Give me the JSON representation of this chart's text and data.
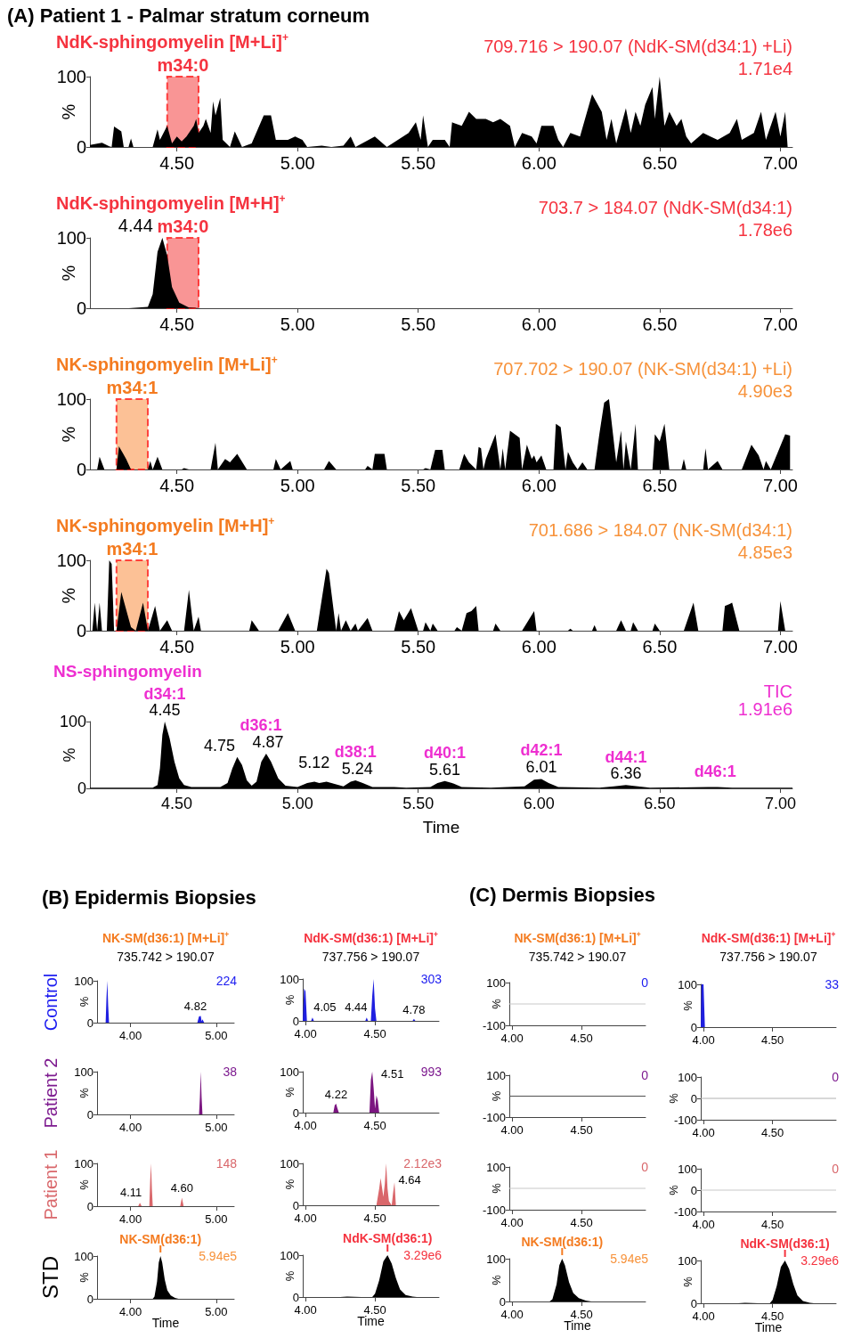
{
  "chart_data": [
    {
      "type": "area",
      "title": "NdK-sphingomyelin [M+Li]$^{+}$",
      "subtitle": "709.716 > 190.07 (NdK-SM(d34:1) +Li)",
      "ylabel": "%",
      "color": "#000000",
      "xlim": [
        4.14,
        7.05
      ],
      "xticks": [
        {
          "value": 4.5,
          "label": "4.50"
        },
        {
          "value": 5,
          "label": "5.00"
        },
        {
          "value": 5.5,
          "label": "5.50"
        },
        {
          "value": 6,
          "label": "6.00"
        },
        {
          "value": 6.5,
          "label": "6.50"
        },
        {
          "value": 7,
          "label": "7.00"
        }
      ],
      "ylim": [
        0,
        100
      ],
      "yticks": [
        0,
        100
      ],
      "x": [
        4.14,
        4.19,
        4.22,
        4.23,
        4.24,
        4.27,
        4.28,
        4.3,
        4.31,
        4.32,
        4.4,
        4.42,
        4.43,
        4.46,
        4.48,
        4.5,
        4.52,
        4.54,
        4.57,
        4.58,
        4.59,
        4.61,
        4.62,
        4.64,
        4.65,
        4.66,
        4.68,
        4.69,
        4.72,
        4.74,
        4.77,
        4.81,
        4.86,
        4.89,
        4.91,
        4.96,
        4.99,
        5.02,
        5.04,
        5.1,
        5.14,
        5.19,
        5.22,
        5.24,
        5.32,
        5.37,
        5.46,
        5.49,
        5.51,
        5.52,
        5.54,
        5.56,
        5.61,
        5.63,
        5.64,
        5.68,
        5.71,
        5.74,
        5.78,
        5.81,
        5.84,
        5.88,
        5.9,
        5.93,
        5.97,
        5.99,
        6.01,
        6.06,
        6.08,
        6.1,
        6.13,
        6.17,
        6.22,
        6.26,
        6.28,
        6.3,
        6.32,
        6.36,
        6.38,
        6.4,
        6.42,
        6.44,
        6.47,
        6.48,
        6.5,
        6.52,
        6.54,
        6.57,
        6.59,
        6.61,
        6.63,
        6.68,
        6.71,
        6.74,
        6.79,
        6.82,
        6.84,
        6.89,
        6.92,
        6.94,
        6.98,
        7.0,
        7.02,
        7.03
      ],
      "values": [
        3,
        6,
        1,
        0,
        29,
        22,
        0,
        0,
        12,
        0,
        0,
        25,
        10,
        30,
        5,
        15,
        8,
        15,
        30,
        40,
        20,
        30,
        40,
        20,
        65,
        45,
        70,
        10,
        0,
        22,
        0,
        5,
        45,
        45,
        10,
        10,
        15,
        10,
        0,
        2,
        0,
        2,
        15,
        0,
        15,
        0,
        20,
        35,
        10,
        45,
        0,
        10,
        10,
        0,
        35,
        30,
        50,
        40,
        40,
        35,
        40,
        30,
        0,
        20,
        15,
        5,
        30,
        30,
        10,
        0,
        20,
        15,
        75,
        50,
        10,
        40,
        5,
        55,
        20,
        50,
        30,
        60,
        85,
        40,
        100,
        30,
        50,
        30,
        40,
        15,
        5,
        20,
        15,
        10,
        20,
        40,
        10,
        20,
        50,
        10,
        50,
        15,
        50,
        0
      ],
      "bands": [
        {
          "axis": "x",
          "from": 4.46,
          "to": 4.59,
          "label": "m34:0",
          "color": "#f77a7a"
        }
      ],
      "annotations": [
        "(A) Patient 1 - Palmar stratum corneum",
        "1.71e4"
      ]
    },
    {
      "type": "area",
      "title": "NdK-sphingomyelin [M+H]$^{+}$",
      "subtitle": "703.7 > 184.07 (NdK-SM(d34:1)",
      "ylabel": "%",
      "color": "#000000",
      "xlim": [
        4.14,
        7.05
      ],
      "xticks": [
        {
          "value": 4.5,
          "label": "4.50"
        },
        {
          "value": 5,
          "label": "5.00"
        },
        {
          "value": 5.5,
          "label": "5.50"
        },
        {
          "value": 6,
          "label": "6.00"
        },
        {
          "value": 6.5,
          "label": "6.50"
        },
        {
          "value": 7,
          "label": "7.00"
        }
      ],
      "ylim": [
        0,
        100
      ],
      "yticks": [
        0,
        100
      ],
      "x": [
        4.14,
        4.3,
        4.38,
        4.4,
        4.42,
        4.44,
        4.46,
        4.48,
        4.51,
        4.55,
        4.6,
        7.05
      ],
      "values": [
        0,
        0,
        2,
        20,
        80,
        100,
        75,
        30,
        8,
        1,
        0,
        0
      ],
      "bands": [
        {
          "axis": "x",
          "from": 4.46,
          "to": 4.59,
          "label": "m34:0",
          "color": "#f77a7a"
        }
      ],
      "annotations": [
        "1.78e6",
        {
          "text": "4.44",
          "x": 4.44,
          "y": 100
        }
      ]
    },
    {
      "type": "area",
      "title": "NK-sphingomyelin [M+Li]$^{+}$",
      "subtitle": "707.702 > 190.07 (NK-SM(d34:1) +Li)",
      "ylabel": "%",
      "color": "#000000",
      "xlim": [
        4.14,
        7.05
      ],
      "xticks": [
        {
          "value": 4.5,
          "label": "4.50"
        },
        {
          "value": 5,
          "label": "5.00"
        },
        {
          "value": 5.5,
          "label": "5.50"
        },
        {
          "value": 6,
          "label": "6.00"
        },
        {
          "value": 6.5,
          "label": "6.50"
        },
        {
          "value": 7,
          "label": "7.00"
        }
      ],
      "ylim": [
        0,
        100
      ],
      "yticks": [
        0,
        100
      ],
      "x": [
        4.17,
        4.18,
        4.2,
        4.25,
        4.26,
        4.29,
        4.31,
        4.38,
        4.39,
        4.4,
        4.42,
        4.44,
        4.52,
        4.53,
        4.55,
        4.64,
        4.66,
        4.67,
        4.7,
        4.72,
        4.75,
        4.79,
        4.9,
        4.91,
        4.93,
        4.97,
        4.98,
        5.11,
        5.13,
        5.16,
        5.28,
        5.29,
        5.31,
        5.32,
        5.36,
        5.37,
        5.52,
        5.53,
        5.55,
        5.57,
        5.6,
        5.61,
        5.67,
        5.69,
        5.71,
        5.74,
        5.75,
        5.76,
        5.77,
        5.78,
        5.82,
        5.84,
        5.85,
        5.86,
        5.88,
        5.92,
        5.93,
        5.95,
        5.97,
        5.98,
        5.99,
        6.01,
        6.03,
        6.06,
        6.07,
        6.09,
        6.11,
        6.12,
        6.14,
        6.16,
        6.18,
        6.2,
        6.23,
        6.25,
        6.27,
        6.29,
        6.31,
        6.32,
        6.34,
        6.35,
        6.36,
        6.38,
        6.4,
        6.41,
        6.47,
        6.48,
        6.5,
        6.52,
        6.54,
        6.59,
        6.6,
        6.61,
        6.68,
        6.69,
        6.7,
        6.74,
        6.76,
        6.84,
        6.88,
        6.91,
        6.93,
        6.94,
        6.96,
        7.02,
        7.04
      ],
      "values": [
        0,
        18,
        0,
        0,
        33,
        15,
        0,
        0,
        12,
        0,
        18,
        0,
        0,
        2,
        0,
        0,
        38,
        0,
        15,
        10,
        22,
        0,
        0,
        15,
        0,
        12,
        0,
        0,
        12,
        0,
        0,
        5,
        0,
        22,
        22,
        0,
        0,
        2,
        0,
        28,
        28,
        0,
        0,
        22,
        10,
        0,
        32,
        30,
        0,
        15,
        50,
        0,
        30,
        0,
        55,
        45,
        0,
        35,
        15,
        20,
        10,
        20,
        0,
        0,
        65,
        60,
        0,
        25,
        10,
        0,
        10,
        0,
        0,
        50,
        95,
        100,
        40,
        10,
        55,
        0,
        40,
        0,
        65,
        0,
        0,
        50,
        40,
        65,
        0,
        0,
        15,
        0,
        0,
        30,
        0,
        12,
        0,
        0,
        35,
        20,
        0,
        12,
        0,
        50,
        48
      ],
      "bands": [
        {
          "axis": "x",
          "from": 4.25,
          "to": 4.38,
          "label": "m34:1",
          "color": "#fbb27c"
        }
      ],
      "annotations": [
        "4.90e3"
      ]
    },
    {
      "type": "area",
      "title": "NK-sphingomyelin [M+H]$^{+}$",
      "subtitle": "701.686 > 184.07 (NK-SM(d34:1)",
      "ylabel": "%",
      "color": "#000000",
      "xlim": [
        4.14,
        7.05
      ],
      "xticks": [
        {
          "value": 4.5,
          "label": "4.50"
        },
        {
          "value": 5,
          "label": "5.00"
        },
        {
          "value": 5.5,
          "label": "5.50"
        },
        {
          "value": 6,
          "label": "6.00"
        },
        {
          "value": 6.5,
          "label": "6.50"
        },
        {
          "value": 7,
          "label": "7.00"
        }
      ],
      "ylim": [
        0,
        100
      ],
      "yticks": [
        0,
        100
      ],
      "x": [
        4.15,
        4.16,
        4.17,
        4.18,
        4.19,
        4.21,
        4.22,
        4.23,
        4.24,
        4.25,
        4.27,
        4.29,
        4.31,
        4.33,
        4.36,
        4.38,
        4.41,
        4.43,
        4.46,
        4.48,
        4.53,
        4.55,
        4.57,
        4.59,
        4.6,
        4.8,
        4.81,
        4.84,
        4.92,
        4.96,
        4.99,
        5.08,
        5.12,
        5.13,
        5.16,
        5.17,
        5.18,
        5.2,
        5.22,
        5.24,
        5.25,
        5.29,
        5.31,
        5.4,
        5.42,
        5.44,
        5.47,
        5.5,
        5.52,
        5.53,
        5.55,
        5.56,
        5.58,
        5.65,
        5.66,
        5.68,
        5.7,
        5.72,
        5.74,
        5.75,
        5.81,
        5.82,
        5.84,
        5.93,
        5.98,
        5.99,
        6.12,
        6.13,
        6.14,
        6.22,
        6.23,
        6.24,
        6.32,
        6.34,
        6.36,
        6.38,
        6.39,
        6.41,
        6.47,
        6.48,
        6.5,
        6.6,
        6.64,
        6.66,
        6.76,
        6.77,
        6.79,
        6.8,
        6.83,
        6.99,
        7.0,
        7.02,
        7.05
      ],
      "values": [
        0,
        40,
        0,
        40,
        0,
        0,
        100,
        95,
        0,
        0,
        55,
        30,
        5,
        0,
        40,
        0,
        35,
        0,
        15,
        0,
        0,
        58,
        0,
        20,
        0,
        0,
        15,
        0,
        0,
        25,
        0,
        0,
        88,
        82,
        0,
        25,
        0,
        15,
        0,
        10,
        0,
        18,
        0,
        0,
        28,
        15,
        32,
        0,
        0,
        12,
        0,
        10,
        0,
        0,
        5,
        0,
        25,
        28,
        35,
        0,
        0,
        10,
        0,
        0,
        28,
        0,
        0,
        3,
        0,
        0,
        8,
        0,
        0,
        15,
        0,
        0,
        12,
        0,
        0,
        10,
        0,
        0,
        40,
        0,
        0,
        35,
        38,
        40,
        0,
        0,
        42,
        0,
        0
      ],
      "bands": [
        {
          "axis": "x",
          "from": 4.25,
          "to": 4.38,
          "label": "m34:1",
          "color": "#fbb27c"
        }
      ],
      "annotations": [
        "4.85e3"
      ]
    },
    {
      "type": "area",
      "title": "NS-sphingomyelin",
      "subtitle": "TIC",
      "xlabel": "Time",
      "ylabel": "%",
      "color": "#000000",
      "xlim": [
        4.14,
        7.05
      ],
      "xticks": [
        {
          "value": 4.5,
          "label": "4.50"
        },
        {
          "value": 5,
          "label": "5.00"
        },
        {
          "value": 5.5,
          "label": "5.50"
        },
        {
          "value": 6,
          "label": "6.00"
        },
        {
          "value": 6.5,
          "label": "6.50"
        },
        {
          "value": 7,
          "label": "7.00"
        }
      ],
      "ylim": [
        0,
        100
      ],
      "yticks": [
        0,
        100
      ],
      "x": [
        4.14,
        4.4,
        4.42,
        4.43,
        4.44,
        4.45,
        4.47,
        4.49,
        4.51,
        4.53,
        4.56,
        4.62,
        4.68,
        4.71,
        4.73,
        4.75,
        4.77,
        4.79,
        4.81,
        4.83,
        4.85,
        4.87,
        4.89,
        4.92,
        4.95,
        5.0,
        5.04,
        5.07,
        5.09,
        5.12,
        5.16,
        5.19,
        5.22,
        5.24,
        5.27,
        5.31,
        5.4,
        5.45,
        5.55,
        5.58,
        5.61,
        5.64,
        5.68,
        5.8,
        5.94,
        5.98,
        6.01,
        6.04,
        6.08,
        6.25,
        6.31,
        6.36,
        6.41,
        6.46,
        6.7,
        6.74,
        6.8,
        7.05
      ],
      "values": [
        1,
        1,
        5,
        30,
        80,
        100,
        75,
        40,
        15,
        5,
        2,
        2,
        2,
        8,
        30,
        47,
        35,
        12,
        4,
        10,
        40,
        52,
        40,
        15,
        4,
        2,
        8,
        10,
        8,
        10,
        6,
        3,
        10,
        12,
        8,
        2,
        2,
        1,
        2,
        8,
        11,
        8,
        2,
        1,
        3,
        13,
        14,
        8,
        2,
        1,
        3,
        5,
        3,
        1,
        2,
        2,
        1,
        1
      ],
      "annotations": [
        "1.91e6",
        {
          "text": "4.45",
          "x": 4.45,
          "y": 100
        },
        {
          "text": "4.75",
          "x": 4.75,
          "y": 47
        },
        {
          "text": "4.87",
          "x": 4.87,
          "y": 52
        },
        {
          "text": "5.12",
          "x": 5.12,
          "y": 10
        },
        {
          "text": "5.24",
          "x": 5.24,
          "y": 12
        },
        {
          "text": "5.61",
          "x": 5.61,
          "y": 11
        },
        {
          "text": "6.01",
          "x": 6.01,
          "y": 14
        },
        {
          "text": "6.36",
          "x": 6.36,
          "y": 5
        },
        {
          "text": "d34:1",
          "x": 4.45,
          "y": 100
        },
        {
          "text": "d36:1",
          "x": 4.87,
          "y": 52
        },
        {
          "text": "d38:1",
          "x": 5.24,
          "y": 12
        },
        {
          "text": "d40:1",
          "x": 5.61,
          "y": 11
        },
        {
          "text": "d42:1",
          "x": 6.01,
          "y": 14
        },
        {
          "text": "d44:1",
          "x": 6.36,
          "y": 5
        },
        {
          "text": "d46:1",
          "x": 6.73,
          "y": 2
        }
      ]
    },
    {
      "type": "area",
      "title": "NK-SM(d36:1) [M+Li]$^{+}$",
      "subtitle": "735.742 > 190.07",
      "ylabel": "%",
      "color": "#1f1fe0",
      "xlim": [
        3.61,
        5.21
      ],
      "xticks": [
        {
          "value": 4,
          "label": "4.00"
        },
        {
          "value": 5,
          "label": "5.00"
        }
      ],
      "ylim": [
        0,
        100
      ],
      "yticks": [
        0,
        100
      ],
      "x": [
        3.61,
        3.71,
        3.72,
        3.73,
        3.74,
        3.75,
        4.78,
        4.8,
        4.82,
        4.83,
        4.84,
        4.86,
        5.21
      ],
      "values": [
        0,
        0,
        60,
        100,
        40,
        0,
        0,
        15,
        16,
        3,
        8,
        0,
        0
      ],
      "annotations": [
        "(B) Epidermis Biopsies",
        "Control",
        "224",
        {
          "text": "4.82",
          "x": 4.82,
          "y": 16
        }
      ]
    },
    {
      "type": "area",
      "ylabel": "%",
      "color": "#7b1580",
      "xlim": [
        3.61,
        5.21
      ],
      "xticks": [
        {
          "value": 4,
          "label": "4.00"
        },
        {
          "value": 5,
          "label": "5.00"
        }
      ],
      "ylim": [
        0,
        100
      ],
      "yticks": [
        0,
        100
      ],
      "x": [
        3.61,
        4.8,
        4.81,
        4.82,
        4.83,
        4.84,
        5.21
      ],
      "values": [
        0,
        0,
        40,
        100,
        40,
        0,
        0
      ],
      "annotations": [
        "Patient 2",
        "38"
      ]
    },
    {
      "type": "area",
      "ylabel": "%",
      "color": "#d9676b",
      "xlim": [
        3.61,
        5.21
      ],
      "xticks": [
        {
          "value": 4,
          "label": "4.00"
        },
        {
          "value": 5,
          "label": "5.00"
        }
      ],
      "ylim": [
        0,
        100
      ],
      "yticks": [
        0,
        100
      ],
      "x": [
        3.61,
        4.09,
        4.11,
        4.13,
        4.22,
        4.23,
        4.24,
        4.25,
        4.26,
        4.58,
        4.6,
        4.62,
        5.21
      ],
      "values": [
        0,
        0,
        8,
        0,
        0,
        60,
        100,
        40,
        0,
        0,
        20,
        0,
        0
      ],
      "annotations": [
        "Patient 1",
        "148",
        {
          "text": "4.11",
          "x": 4.11,
          "y": 8
        },
        {
          "text": "4.60",
          "x": 4.6,
          "y": 20
        }
      ]
    },
    {
      "type": "area",
      "xlabel": "Time",
      "ylabel": "%",
      "color": "#000000",
      "xlim": [
        3.61,
        5.21
      ],
      "xticks": [
        {
          "value": 4,
          "label": "4.00"
        },
        {
          "value": 5,
          "label": "5.00"
        }
      ],
      "ylim": [
        0,
        100
      ],
      "yticks": [
        0,
        100
      ],
      "x": [
        3.61,
        4.26,
        4.28,
        4.31,
        4.33,
        4.35,
        4.37,
        4.4,
        4.43,
        4.47,
        4.52,
        4.56,
        5.21
      ],
      "values": [
        0,
        0,
        5,
        40,
        85,
        100,
        85,
        45,
        20,
        8,
        2,
        0,
        0
      ],
      "annotations": [
        "STD",
        "5.94e5",
        {
          "text": "NK-SM(d36:1)",
          "x": 4.35,
          "y": 100
        }
      ]
    },
    {
      "type": "area",
      "title": "NdK-SM(d36:1) [M+Li]$^{+}$",
      "subtitle": "737.756 > 190.07",
      "ylabel": "%",
      "color": "#1f1fe0",
      "xlim": [
        3.98,
        4.96
      ],
      "xticks": [
        {
          "value": 4,
          "label": "4.00"
        },
        {
          "value": 4.5,
          "label": "4.50"
        }
      ],
      "ylim": [
        0,
        100
      ],
      "yticks": [
        0,
        100
      ],
      "x": [
        3.98,
        3.99,
        4.0,
        4.01,
        4.04,
        4.05,
        4.06,
        4.43,
        4.44,
        4.45,
        4.47,
        4.48,
        4.49,
        4.5,
        4.51,
        4.77,
        4.78,
        4.79,
        4.96
      ],
      "values": [
        0,
        77,
        70,
        0,
        0,
        8,
        0,
        0,
        8,
        0,
        0,
        60,
        100,
        30,
        0,
        0,
        5,
        0,
        0
      ],
      "annotations": [
        "303",
        {
          "text": "4.05",
          "x": 4.05,
          "y": 8
        },
        {
          "text": "4.44",
          "x": 4.44,
          "y": 8
        },
        {
          "text": "4.78",
          "x": 4.78,
          "y": 5
        }
      ]
    },
    {
      "type": "area",
      "ylabel": "%",
      "color": "#7b1580",
      "xlim": [
        3.98,
        4.96
      ],
      "xticks": [
        {
          "value": 4,
          "label": "4.00"
        },
        {
          "value": 4.5,
          "label": "4.50"
        }
      ],
      "ylim": [
        0,
        100
      ],
      "yticks": [
        0,
        100
      ],
      "x": [
        3.98,
        4.2,
        4.21,
        4.22,
        4.23,
        4.24,
        4.46,
        4.47,
        4.48,
        4.49,
        4.5,
        4.51,
        4.52,
        4.53,
        4.96
      ],
      "values": [
        0,
        0,
        18,
        22,
        10,
        0,
        0,
        80,
        100,
        60,
        10,
        42,
        30,
        0,
        0
      ],
      "annotations": [
        "993",
        {
          "text": "4.22",
          "x": 4.22,
          "y": 22
        },
        {
          "text": "4.51",
          "x": 4.51,
          "y": 42
        }
      ]
    },
    {
      "type": "area",
      "ylabel": "%",
      "color": "#d9676b",
      "xlim": [
        3.98,
        4.96
      ],
      "xticks": [
        {
          "value": 4,
          "label": "4.00"
        },
        {
          "value": 4.5,
          "label": "4.50"
        }
      ],
      "ylim": [
        0,
        100
      ],
      "yticks": [
        0,
        100
      ],
      "x": [
        3.98,
        4.51,
        4.53,
        4.54,
        4.56,
        4.57,
        4.58,
        4.59,
        4.6,
        4.62,
        4.63,
        4.64,
        4.65,
        4.96
      ],
      "values": [
        0,
        0,
        40,
        65,
        20,
        50,
        100,
        40,
        10,
        0,
        30,
        55,
        0,
        0
      ],
      "annotations": [
        "2.12e3",
        {
          "text": "4.64",
          "x": 4.64,
          "y": 55
        }
      ]
    },
    {
      "type": "area",
      "xlabel": "Time",
      "ylabel": "%",
      "color": "#000000",
      "xlim": [
        3.98,
        4.96
      ],
      "xticks": [
        {
          "value": 4,
          "label": "4.00"
        },
        {
          "value": 4.5,
          "label": "4.50"
        }
      ],
      "ylim": [
        0,
        100
      ],
      "yticks": [
        0,
        100
      ],
      "x": [
        3.98,
        4.25,
        4.3,
        4.4,
        4.48,
        4.5,
        4.53,
        4.56,
        4.59,
        4.62,
        4.65,
        4.68,
        4.72,
        4.77,
        4.8,
        4.96
      ],
      "values": [
        0,
        0,
        1,
        0,
        0,
        8,
        40,
        85,
        100,
        80,
        45,
        18,
        5,
        1,
        0,
        0
      ],
      "annotations": [
        "3.29e6",
        {
          "text": "NdK-SM(d36:1)",
          "x": 4.59,
          "y": 100
        }
      ]
    },
    {
      "type": "line",
      "title": "NK-SM(d36:1) [M+Li]$^{+}$",
      "subtitle": "735.742 > 190.07",
      "ylabel": "%",
      "color": "#c8c8c8",
      "xlim": [
        3.98,
        4.96
      ],
      "xticks": [
        {
          "value": 4,
          "label": "4.00"
        },
        {
          "value": 4.5,
          "label": "4.50"
        }
      ],
      "ylim": [
        -100,
        100
      ],
      "yticks": [
        -100,
        100
      ],
      "x": [
        3.98,
        4.96
      ],
      "values": [
        0,
        0
      ],
      "annotations": [
        "(C) Dermis Biopsies",
        "0"
      ]
    },
    {
      "type": "line",
      "ylabel": "%",
      "color": "#505050",
      "xlim": [
        3.98,
        4.96
      ],
      "xticks": [
        {
          "value": 4,
          "label": "4.00"
        },
        {
          "value": 4.5,
          "label": "4.50"
        }
      ],
      "ylim": [
        -100,
        100
      ],
      "yticks": [
        -100,
        100
      ],
      "x": [
        3.98,
        4.96
      ],
      "values": [
        0,
        0
      ],
      "annotations": [
        "0"
      ]
    },
    {
      "type": "line",
      "ylabel": "%",
      "color": "#c8c8c8",
      "xlim": [
        3.98,
        4.96
      ],
      "xticks": [
        {
          "value": 4,
          "label": "4.00"
        },
        {
          "value": 4.5,
          "label": "4.50"
        }
      ],
      "ylim": [
        -100,
        100
      ],
      "yticks": [
        -100,
        100
      ],
      "x": [
        3.98,
        4.96
      ],
      "values": [
        0,
        0
      ],
      "annotations": [
        "0"
      ]
    },
    {
      "type": "area",
      "xlabel": "Time",
      "ylabel": "%",
      "color": "#000000",
      "xlim": [
        3.98,
        4.96
      ],
      "xticks": [
        {
          "value": 4,
          "label": "4.00"
        },
        {
          "value": 4.5,
          "label": "4.50"
        }
      ],
      "ylim": [
        0,
        100
      ],
      "yticks": [
        0,
        100
      ],
      "x": [
        3.98,
        4.27,
        4.29,
        4.32,
        4.34,
        4.36,
        4.38,
        4.41,
        4.44,
        4.48,
        4.53,
        4.57,
        4.96
      ],
      "values": [
        0,
        0,
        5,
        40,
        85,
        100,
        85,
        45,
        20,
        8,
        2,
        0,
        0
      ],
      "annotations": [
        "5.94e5",
        {
          "text": "NK-SM(d36:1)",
          "x": 4.36,
          "y": 100
        }
      ]
    },
    {
      "type": "area",
      "title": "NdK-SM(d36:1) [M+Li]$^{+}$",
      "subtitle": "737.756 > 190.07",
      "ylabel": "%",
      "color": "#1f1fe0",
      "xlim": [
        3.98,
        4.96
      ],
      "xticks": [
        {
          "value": 4,
          "label": "4.00"
        },
        {
          "value": 4.5,
          "label": "4.50"
        }
      ],
      "ylim": [
        0,
        100
      ],
      "yticks": [
        0,
        100
      ],
      "x": [
        3.98,
        3.985,
        3.99,
        4.0,
        4.01,
        4.96
      ],
      "values": [
        0,
        100,
        100,
        100,
        0,
        0
      ],
      "annotations": [
        "33"
      ]
    },
    {
      "type": "line",
      "ylabel": "%",
      "color": "#b0b0b0",
      "xlim": [
        3.98,
        4.96
      ],
      "xticks": [
        {
          "value": 4,
          "label": "4.00"
        },
        {
          "value": 4.5,
          "label": "4.50"
        }
      ],
      "ylim": [
        -100,
        100
      ],
      "yticks": [
        -100,
        0,
        100
      ],
      "x": [
        3.98,
        4.96
      ],
      "values": [
        0,
        0
      ],
      "annotations": [
        "0"
      ]
    },
    {
      "type": "line",
      "ylabel": "%",
      "color": "#c8c8c8",
      "xlim": [
        3.98,
        4.96
      ],
      "xticks": [
        {
          "value": 4,
          "label": "4.00"
        },
        {
          "value": 4.5,
          "label": "4.50"
        }
      ],
      "ylim": [
        -100,
        100
      ],
      "yticks": [
        -100,
        0,
        100
      ],
      "x": [
        3.98,
        4.96
      ],
      "values": [
        0,
        0
      ],
      "annotations": [
        "0"
      ]
    },
    {
      "type": "area",
      "xlabel": "Time",
      "ylabel": "%",
      "color": "#000000",
      "xlim": [
        3.98,
        4.96
      ],
      "xticks": [
        {
          "value": 4,
          "label": "4.00"
        },
        {
          "value": 4.5,
          "label": "4.50"
        }
      ],
      "ylim": [
        0,
        100
      ],
      "yticks": [
        0,
        100
      ],
      "x": [
        3.98,
        4.25,
        4.3,
        4.4,
        4.48,
        4.5,
        4.53,
        4.56,
        4.59,
        4.62,
        4.65,
        4.68,
        4.72,
        4.77,
        4.8,
        4.96
      ],
      "values": [
        0,
        0,
        1,
        0,
        0,
        8,
        40,
        85,
        100,
        80,
        45,
        18,
        5,
        1,
        0,
        0
      ],
      "annotations": [
        "3.29e6",
        {
          "text": "NdK-SM(d36:1)",
          "x": 4.59,
          "y": 100
        }
      ]
    }
  ]
}
